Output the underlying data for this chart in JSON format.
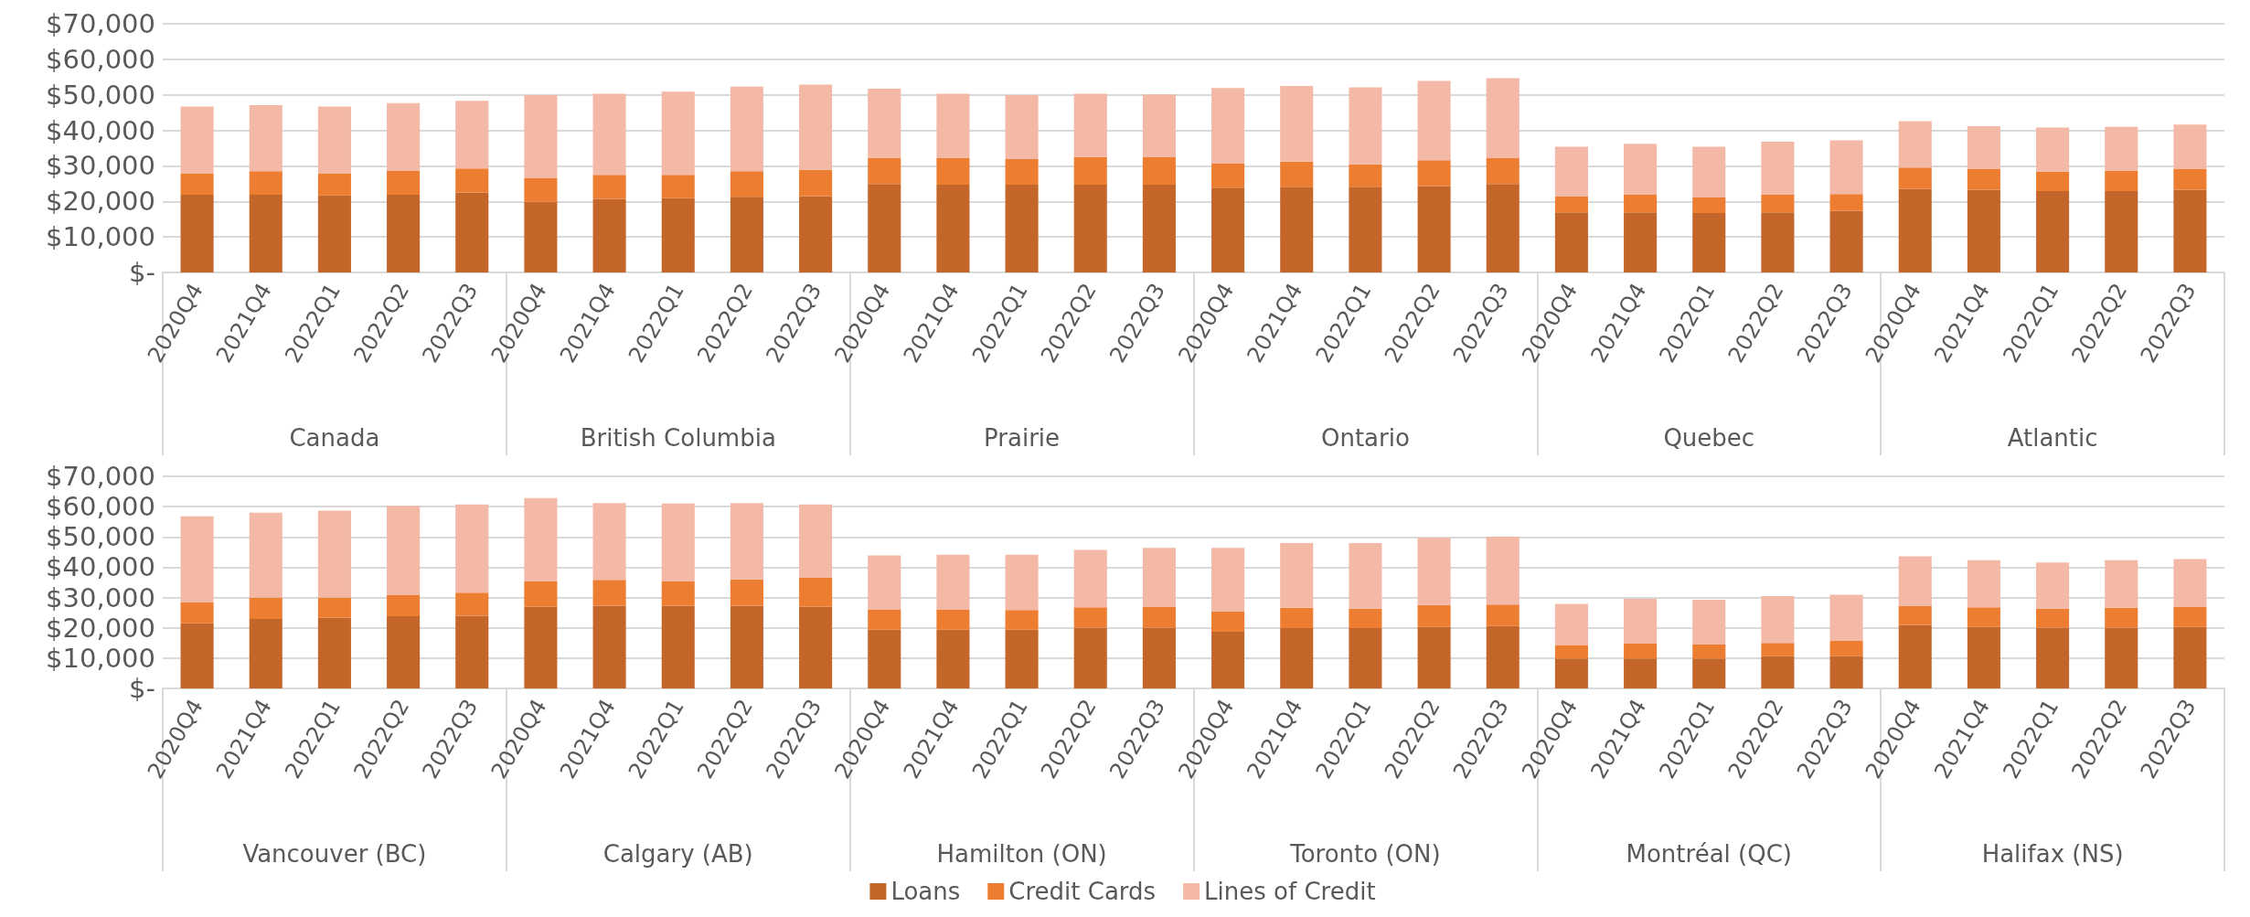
{
  "chart_data": [
    {
      "type": "bar",
      "stacked": true,
      "grid": "y",
      "categories": [
        "2020Q4",
        "2021Q4",
        "2022Q1",
        "2022Q2",
        "2022Q3",
        "2020Q4",
        "2021Q4",
        "2022Q1",
        "2022Q2",
        "2022Q3",
        "2020Q4",
        "2021Q4",
        "2022Q1",
        "2022Q2",
        "2022Q3",
        "2020Q4",
        "2021Q4",
        "2022Q1",
        "2022Q2",
        "2022Q3",
        "2020Q4",
        "2021Q4",
        "2022Q1",
        "2022Q2",
        "2022Q3",
        "2020Q4",
        "2021Q4",
        "2022Q1",
        "2022Q2",
        "2022Q3"
      ],
      "annotations": [
        "Canada",
        "British Columbia",
        "Prairie",
        "Ontario",
        "Quebec",
        "Atlantic"
      ],
      "ylim": [
        0,
        70000
      ],
      "yticks": [
        {
          "value": 0,
          "label": "$-"
        },
        {
          "value": 10000,
          "label": "$10,000"
        },
        {
          "value": 20000,
          "label": "$20,000"
        },
        {
          "value": 30000,
          "label": "$30,000"
        },
        {
          "value": 40000,
          "label": "$40,000"
        },
        {
          "value": 50000,
          "label": "$50,000"
        },
        {
          "value": 60000,
          "label": "$60,000"
        },
        {
          "value": 70000,
          "label": "$70,000"
        }
      ],
      "series": [
        {
          "color": "#c4662a",
          "values": [
            21900,
            21900,
            21700,
            21900,
            22500,
            19900,
            20700,
            20900,
            21300,
            21500,
            24900,
            24700,
            24700,
            24700,
            24700,
            23900,
            24100,
            24100,
            24300,
            24900,
            16900,
            16900,
            16700,
            16900,
            17300,
            23500,
            23300,
            22900,
            22900,
            23300
          ]
        },
        {
          "color": "#ed7d31",
          "values": [
            6000,
            6600,
            6200,
            6800,
            6800,
            6600,
            6800,
            6600,
            7200,
            7400,
            7400,
            7600,
            7200,
            7800,
            7700,
            6700,
            7100,
            6300,
            7300,
            7300,
            4600,
            5000,
            4400,
            5000,
            4800,
            6000,
            5800,
            5500,
            5700,
            5900
          ]
        },
        {
          "color": "#f4b9a6",
          "values": [
            18800,
            18600,
            18800,
            19000,
            19000,
            23400,
            22800,
            23400,
            23800,
            24000,
            19400,
            18000,
            18000,
            17800,
            17700,
            21300,
            21300,
            21700,
            22300,
            22500,
            13900,
            14300,
            14300,
            14900,
            15100,
            13100,
            12100,
            12400,
            12400,
            12400
          ]
        }
      ]
    },
    {
      "type": "bar",
      "stacked": true,
      "grid": "y",
      "legend": "bottom",
      "categories": [
        "2020Q4",
        "2021Q4",
        "2022Q1",
        "2022Q2",
        "2022Q3",
        "2020Q4",
        "2021Q4",
        "2022Q1",
        "2022Q2",
        "2022Q3",
        "2020Q4",
        "2021Q4",
        "2022Q1",
        "2022Q2",
        "2022Q3",
        "2020Q4",
        "2021Q4",
        "2022Q1",
        "2022Q2",
        "2022Q3",
        "2020Q4",
        "2021Q4",
        "2022Q1",
        "2022Q2",
        "2022Q3",
        "2020Q4",
        "2021Q4",
        "2022Q1",
        "2022Q2",
        "2022Q3"
      ],
      "annotations": [
        "Vancouver (BC)",
        "Calgary (AB)",
        "Hamilton (ON)",
        "Toronto (ON)",
        "Montréal (QC)",
        "Halifax (NS)"
      ],
      "ylim": [
        0,
        70000
      ],
      "yticks": [
        {
          "value": 0,
          "label": "$-"
        },
        {
          "value": 10000,
          "label": "$10,000"
        },
        {
          "value": 20000,
          "label": "$20,000"
        },
        {
          "value": 30000,
          "label": "$30,000"
        },
        {
          "value": 40000,
          "label": "$40,000"
        },
        {
          "value": 50000,
          "label": "$50,000"
        },
        {
          "value": 60000,
          "label": "$60,000"
        },
        {
          "value": 70000,
          "label": "$70,000"
        }
      ],
      "series": [
        {
          "name": "Loans",
          "color": "#c4662a",
          "values": [
            21500,
            22900,
            23300,
            23800,
            24000,
            27000,
            27300,
            27300,
            27300,
            27000,
            19400,
            19400,
            19400,
            20100,
            20100,
            18700,
            19900,
            19900,
            20300,
            20600,
            9900,
            9900,
            9900,
            10600,
            10600,
            21000,
            20300,
            20100,
            20100,
            20300
          ]
        },
        {
          "name": "Credit Cards",
          "color": "#ed7d31",
          "values": [
            6900,
            7100,
            6700,
            7100,
            7600,
            8300,
            8500,
            8000,
            8700,
            9500,
            6700,
            6700,
            6500,
            6700,
            6900,
            6700,
            6700,
            6400,
            7200,
            7100,
            4400,
            4900,
            4600,
            4400,
            5100,
            6300,
            6500,
            6200,
            6500,
            6700
          ]
        },
        {
          "name": "Lines of Credit",
          "color": "#f4b9a6",
          "values": [
            28400,
            28000,
            28700,
            29400,
            29100,
            27500,
            25400,
            25700,
            25200,
            24200,
            17800,
            18000,
            18200,
            18900,
            19400,
            21000,
            21400,
            21700,
            22200,
            22400,
            13600,
            14800,
            14800,
            15500,
            15200,
            16300,
            15500,
            15300,
            15700,
            15700
          ]
        }
      ]
    }
  ]
}
